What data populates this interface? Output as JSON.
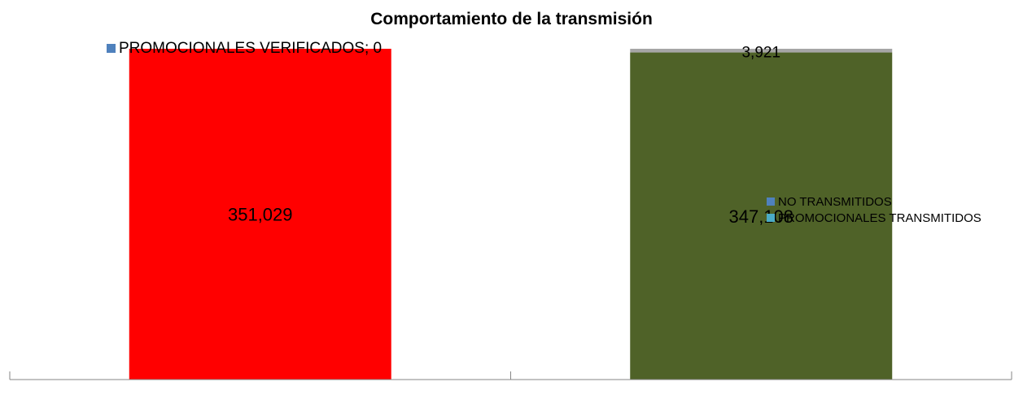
{
  "chart_data": {
    "type": "bar",
    "stacked": true,
    "title": "Comportamiento de la transmisión",
    "xlabel": "",
    "ylabel": "",
    "categories": [
      "",
      ""
    ],
    "ylim": [
      0,
      351029
    ],
    "grid": false,
    "series": [
      {
        "name": "PROMOCIONALES VERIFICADOS",
        "values": [
          351029,
          null
        ],
        "color": "#ff0000",
        "data_labels": [
          "351,029",
          null
        ]
      },
      {
        "name": "PROMOCIONALES TRANSMITIDOS",
        "values": [
          null,
          347108
        ],
        "color": "#4f6228",
        "data_labels": [
          null,
          "347,108"
        ]
      },
      {
        "name": "NO TRANSMITIDOS",
        "values": [
          null,
          3921
        ],
        "color": "#a6a6a6",
        "data_labels": [
          null,
          "3,921"
        ]
      }
    ],
    "legends": [
      {
        "placement": "top-left",
        "entries": [
          {
            "label": "PROMOCIONALES VERIFICADOS; 0",
            "color": "#4f81bd"
          }
        ]
      },
      {
        "placement": "right",
        "entries": [
          {
            "label": "NO TRANSMITIDOS",
            "color": "#4f81bd"
          },
          {
            "label": "PROMOCIONALES TRANSMITIDOS",
            "color": "#4bacc6"
          }
        ]
      }
    ]
  }
}
